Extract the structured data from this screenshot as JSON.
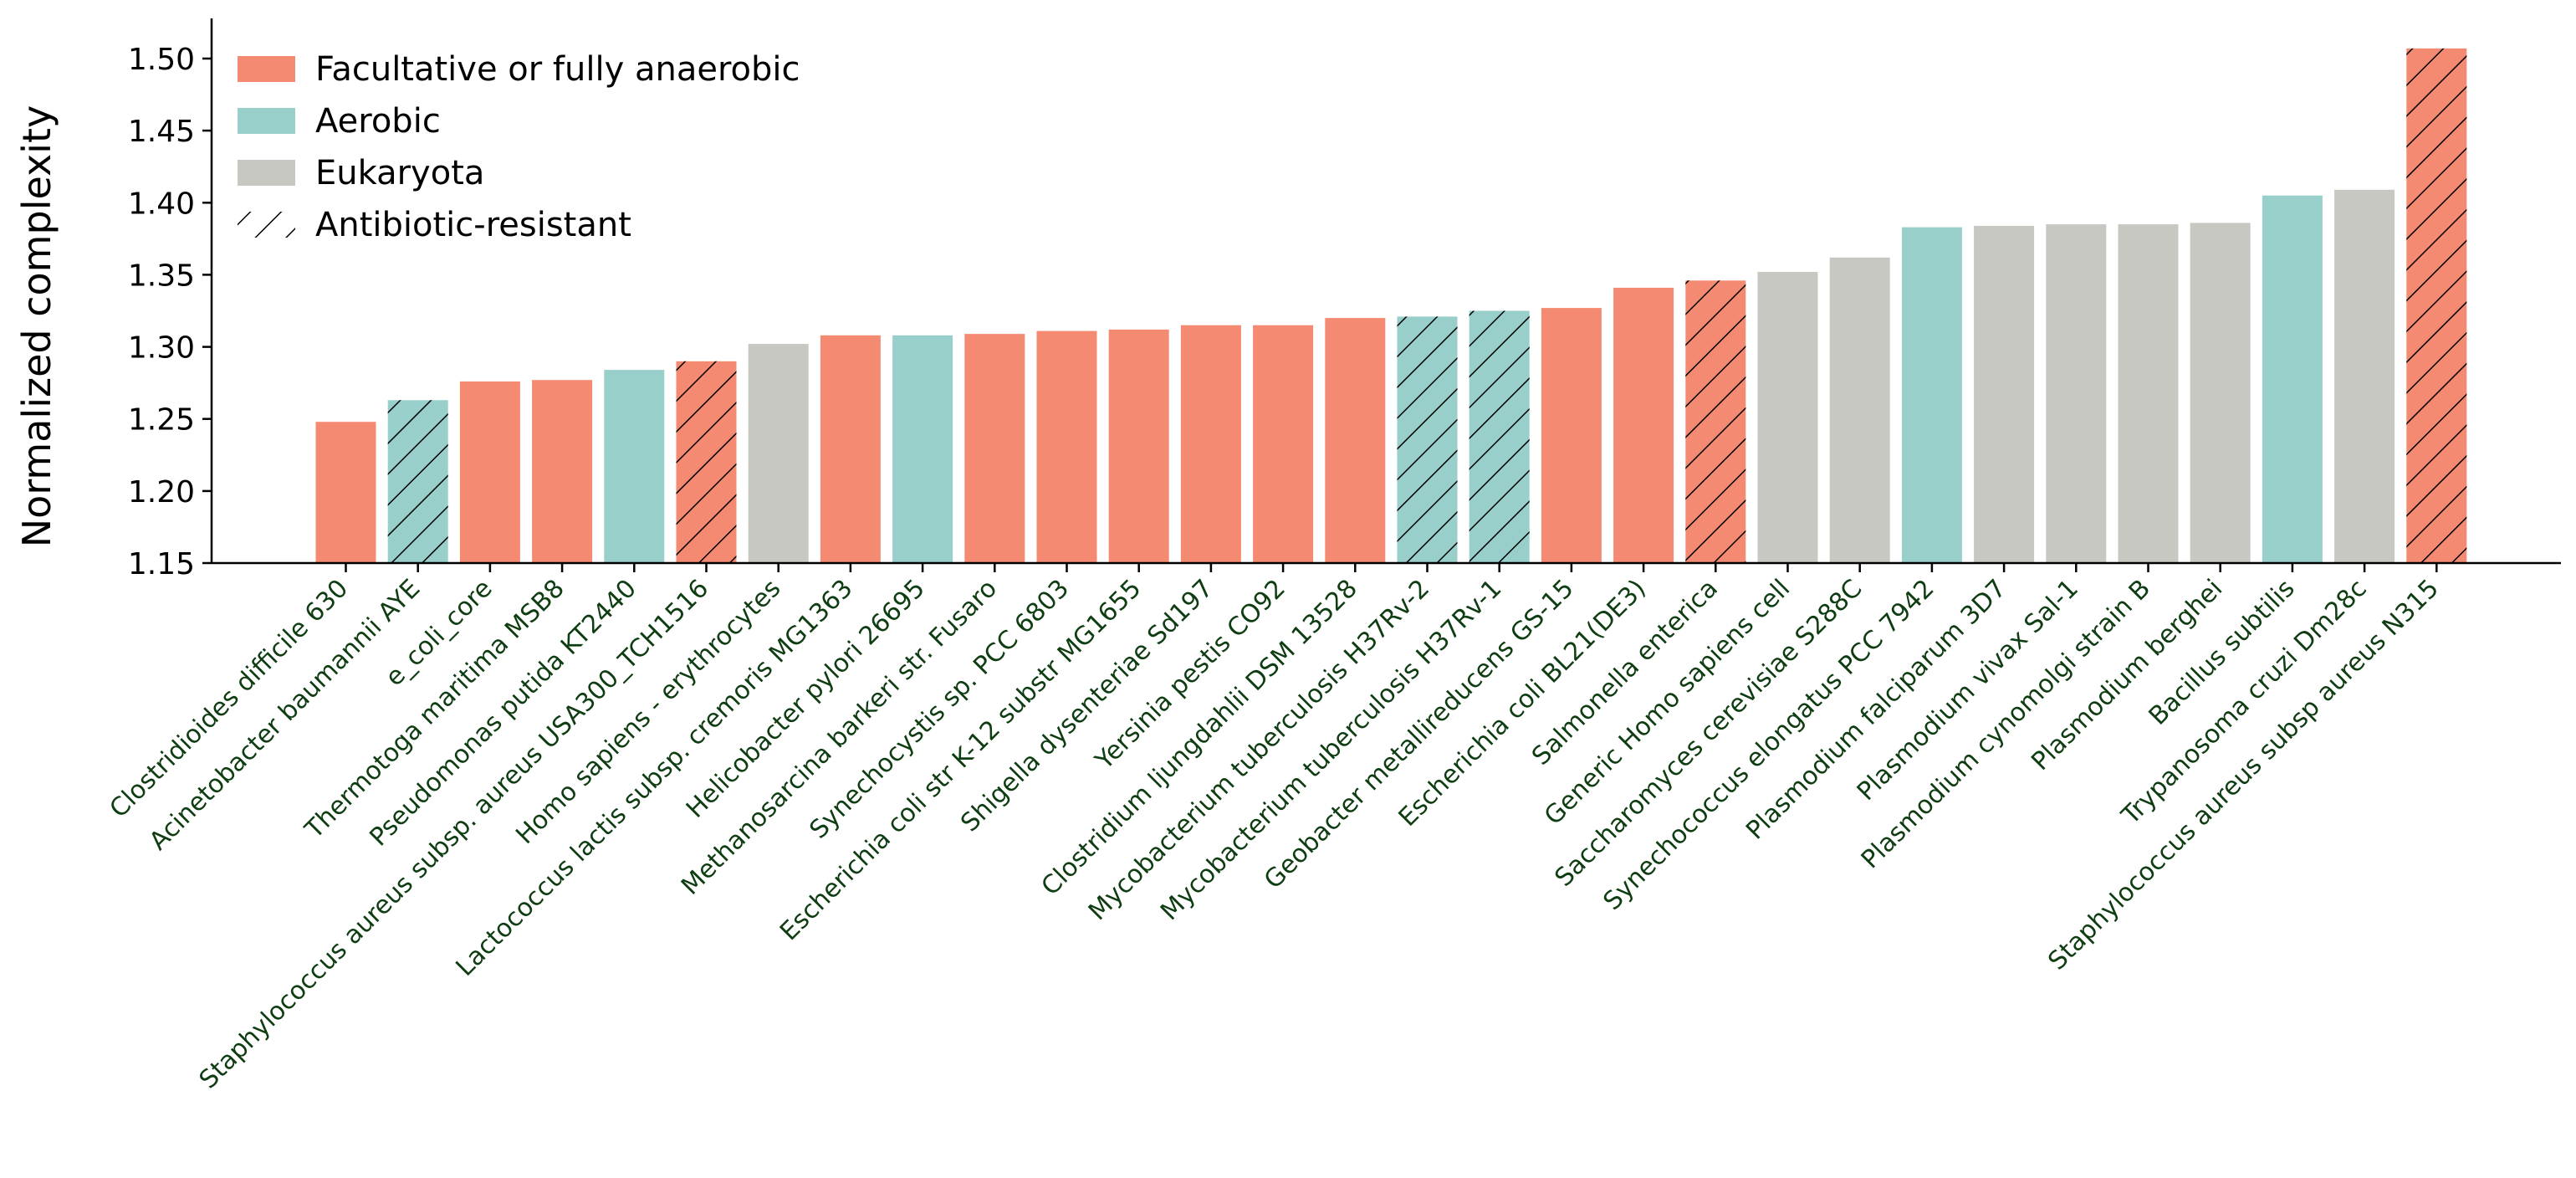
{
  "chart_data": {
    "type": "bar",
    "title": "",
    "xlabel": "",
    "ylabel": "Normalized complexity",
    "ylim": [
      1.15,
      1.53
    ],
    "yticks": [
      "1.15",
      "1.20",
      "1.25",
      "1.30",
      "1.35",
      "1.40",
      "1.45",
      "1.50"
    ],
    "grid": false,
    "legend_position": "top-left",
    "colors": {
      "anaerobic": "#F58A73",
      "aerobic": "#99CFCB",
      "eukaryota": "#C8C8C3",
      "label_text": "#0F3D12",
      "hatch": "#000000"
    },
    "legend": [
      {
        "key": "anaerobic",
        "label": "Facultative or fully anaerobic"
      },
      {
        "key": "aerobic",
        "label": "Aerobic"
      },
      {
        "key": "eukaryota",
        "label": "Eukaryota"
      },
      {
        "key": "resistant",
        "label": "Antibiotic-resistant"
      }
    ],
    "bars": [
      {
        "label": "Clostridioides difficile 630",
        "value": 1.248,
        "group": "anaerobic",
        "resistant": false
      },
      {
        "label": "Acinetobacter baumannii AYE",
        "value": 1.263,
        "group": "aerobic",
        "resistant": true
      },
      {
        "label": "e_coli_core",
        "value": 1.276,
        "group": "anaerobic",
        "resistant": false
      },
      {
        "label": "Thermotoga maritima MSB8",
        "value": 1.277,
        "group": "anaerobic",
        "resistant": false
      },
      {
        "label": "Pseudomonas putida KT2440",
        "value": 1.284,
        "group": "aerobic",
        "resistant": false
      },
      {
        "label": "Staphylococcus aureus subsp. aureus USA300_TCH1516",
        "value": 1.29,
        "group": "anaerobic",
        "resistant": true
      },
      {
        "label": "Homo sapiens - erythrocytes",
        "value": 1.302,
        "group": "eukaryota",
        "resistant": false
      },
      {
        "label": "Lactococcus lactis subsp. cremoris MG1363",
        "value": 1.308,
        "group": "anaerobic",
        "resistant": false
      },
      {
        "label": "Helicobacter pylori 26695",
        "value": 1.308,
        "group": "aerobic",
        "resistant": false
      },
      {
        "label": "Methanosarcina barkeri str. Fusaro",
        "value": 1.309,
        "group": "anaerobic",
        "resistant": false
      },
      {
        "label": "Synechocystis sp. PCC 6803",
        "value": 1.311,
        "group": "anaerobic",
        "resistant": false
      },
      {
        "label": "Escherichia coli str K-12 substr MG1655",
        "value": 1.312,
        "group": "anaerobic",
        "resistant": false
      },
      {
        "label": "Shigella dysenteriae Sd197",
        "value": 1.315,
        "group": "anaerobic",
        "resistant": false
      },
      {
        "label": "Yersinia pestis CO92",
        "value": 1.315,
        "group": "anaerobic",
        "resistant": false
      },
      {
        "label": "Clostridium ljungdahlii DSM 13528",
        "value": 1.32,
        "group": "anaerobic",
        "resistant": false
      },
      {
        "label": "Mycobacterium tuberculosis H37Rv-2",
        "value": 1.321,
        "group": "aerobic",
        "resistant": true
      },
      {
        "label": "Mycobacterium tuberculosis H37Rv-1",
        "value": 1.325,
        "group": "aerobic",
        "resistant": true
      },
      {
        "label": "Geobacter metallireducens GS-15",
        "value": 1.327,
        "group": "anaerobic",
        "resistant": false
      },
      {
        "label": "Escherichia coli BL21(DE3)",
        "value": 1.341,
        "group": "anaerobic",
        "resistant": false
      },
      {
        "label": "Salmonella enterica",
        "value": 1.346,
        "group": "anaerobic",
        "resistant": true
      },
      {
        "label": "Generic Homo sapiens cell",
        "value": 1.352,
        "group": "eukaryota",
        "resistant": false
      },
      {
        "label": "Saccharomyces cerevisiae S288C",
        "value": 1.362,
        "group": "eukaryota",
        "resistant": false
      },
      {
        "label": "Synechococcus elongatus PCC 7942",
        "value": 1.383,
        "group": "aerobic",
        "resistant": false
      },
      {
        "label": "Plasmodium falciparum 3D7",
        "value": 1.384,
        "group": "eukaryota",
        "resistant": false
      },
      {
        "label": "Plasmodium vivax Sal-1",
        "value": 1.385,
        "group": "eukaryota",
        "resistant": false
      },
      {
        "label": "Plasmodium cynomolgi strain B",
        "value": 1.385,
        "group": "eukaryota",
        "resistant": false
      },
      {
        "label": "Plasmodium berghei",
        "value": 1.386,
        "group": "eukaryota",
        "resistant": false
      },
      {
        "label": "Bacillus subtilis",
        "value": 1.405,
        "group": "aerobic",
        "resistant": false
      },
      {
        "label": "Trypanosoma cruzi Dm28c",
        "value": 1.409,
        "group": "eukaryota",
        "resistant": false
      },
      {
        "label": "Staphylococcus aureus subsp aureus N315",
        "value": 1.507,
        "group": "anaerobic",
        "resistant": true
      }
    ]
  }
}
